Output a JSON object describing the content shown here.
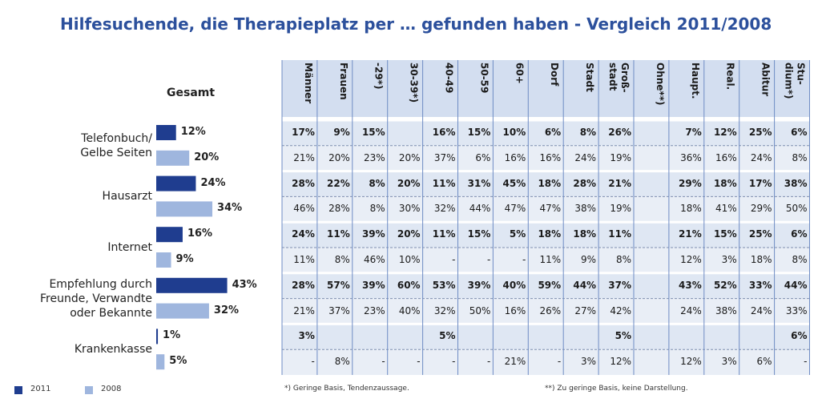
{
  "chart_data": {
    "type": "bar",
    "orientation": "horizontal",
    "title": "Hilfesuchende, die Therapieplatz per … gefunden haben - Vergleich 2011/2008",
    "subtitle": "Gesamt",
    "categories": [
      "Telefonbuch/\nGelbe Seiten",
      "Hausarzt",
      "Internet",
      "Empfehlung durch\nFreunde, Verwandte\noder Bekannte",
      "Krankenkasse"
    ],
    "series": [
      {
        "name": "2011",
        "color": "#1f3d8f",
        "values": [
          12,
          24,
          16,
          43,
          1
        ],
        "value_labels": [
          "12%",
          "24%",
          "16%",
          "43%",
          "1%"
        ]
      },
      {
        "name": "2008",
        "color": "#9fb6de",
        "values": [
          20,
          34,
          9,
          32,
          5
        ],
        "value_labels": [
          "20%",
          "34%",
          "9%",
          "32%",
          "5%"
        ]
      }
    ],
    "xlim": [
      0,
      50
    ],
    "legend": "bottom-left"
  },
  "table": {
    "columns": [
      "Männer",
      "Frauen",
      "-29*)",
      "30-39*)",
      "40-49",
      "50-59",
      "60+",
      "Dorf",
      "Stadt",
      "Groß-\nstadt",
      "Ohne**)",
      "Haupt.",
      "Real.",
      "Abitur",
      "Stu-\ndium*)"
    ],
    "rows": [
      [
        "17%",
        "9%",
        "15%",
        null,
        "16%",
        "15%",
        "10%",
        "6%",
        "8%",
        "26%",
        null,
        "7%",
        "12%",
        "25%",
        "6%"
      ],
      [
        "21%",
        "20%",
        "23%",
        "20%",
        "37%",
        "6%",
        "16%",
        "16%",
        "24%",
        "19%",
        null,
        "36%",
        "16%",
        "24%",
        "8%"
      ],
      [
        "28%",
        "22%",
        "8%",
        "20%",
        "11%",
        "31%",
        "45%",
        "18%",
        "28%",
        "21%",
        null,
        "29%",
        "18%",
        "17%",
        "38%"
      ],
      [
        "46%",
        "28%",
        "8%",
        "30%",
        "32%",
        "44%",
        "47%",
        "47%",
        "38%",
        "19%",
        null,
        "18%",
        "41%",
        "29%",
        "50%"
      ],
      [
        "24%",
        "11%",
        "39%",
        "20%",
        "11%",
        "15%",
        "5%",
        "18%",
        "18%",
        "11%",
        null,
        "21%",
        "15%",
        "25%",
        "6%"
      ],
      [
        "11%",
        "8%",
        "46%",
        "10%",
        "-",
        "-",
        "-",
        "11%",
        "9%",
        "8%",
        null,
        "12%",
        "3%",
        "18%",
        "8%"
      ],
      [
        "28%",
        "57%",
        "39%",
        "60%",
        "53%",
        "39%",
        "40%",
        "59%",
        "44%",
        "37%",
        null,
        "43%",
        "52%",
        "33%",
        "44%"
      ],
      [
        "21%",
        "37%",
        "23%",
        "40%",
        "32%",
        "50%",
        "16%",
        "26%",
        "27%",
        "42%",
        null,
        "24%",
        "38%",
        "24%",
        "33%"
      ],
      [
        "3%",
        null,
        null,
        null,
        "5%",
        null,
        null,
        null,
        null,
        "5%",
        null,
        null,
        null,
        null,
        "6%"
      ],
      [
        "-",
        "8%",
        "-",
        "-",
        "-",
        "-",
        "21%",
        "-",
        "3%",
        "12%",
        null,
        "12%",
        "3%",
        "6%",
        "-"
      ]
    ]
  },
  "footnotes": [
    "*) Geringe Basis, Tendenzaussage.",
    "**) Zu geringe Basis, keine Darstellung."
  ]
}
